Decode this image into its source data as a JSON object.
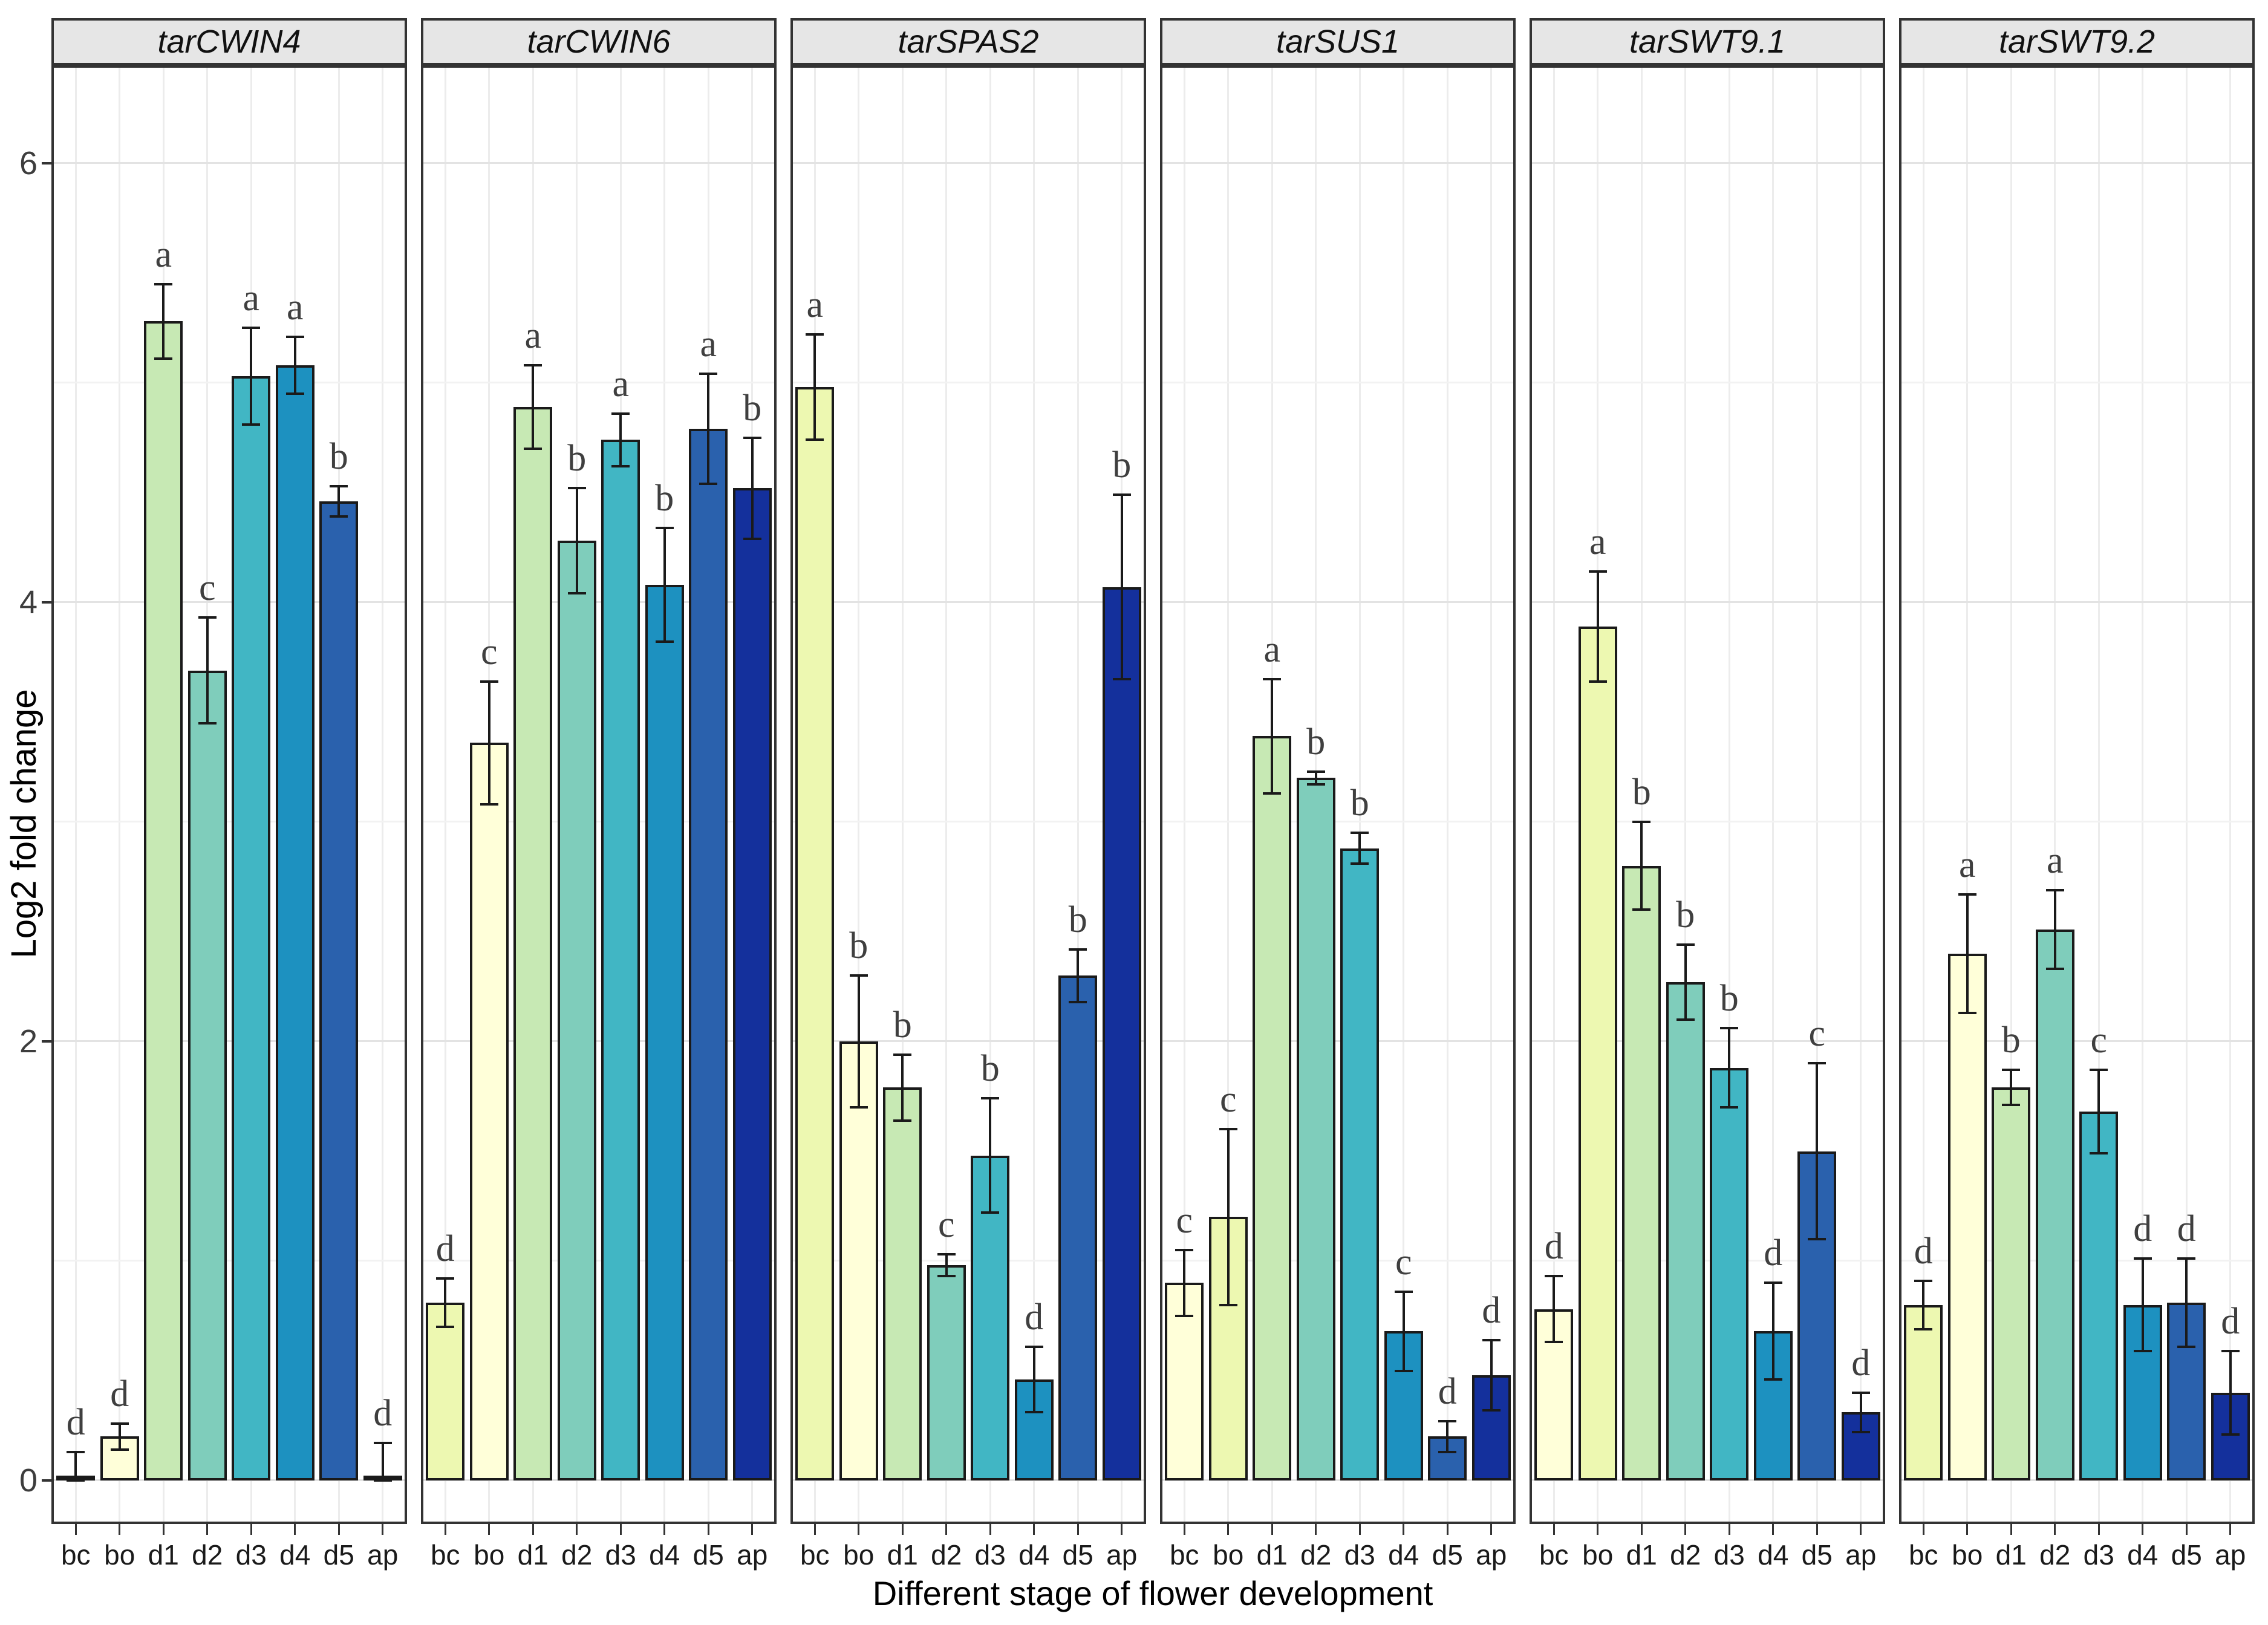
{
  "chart_data": {
    "type": "bar",
    "title": "",
    "xlabel": "Different stage of flower development",
    "ylabel": "Log2 fold change",
    "categories": [
      "bc",
      "bo",
      "d1",
      "d2",
      "d3",
      "d4",
      "d5",
      "ap"
    ],
    "yticks": [
      0,
      2,
      4,
      6
    ],
    "ylim": [
      0,
      6.45
    ],
    "grid": "major and minor horizontal, vertical at categories",
    "legend_position": "none",
    "error_bars": true,
    "significance_letters": true,
    "facets": [
      {
        "title": "tarCWIN4",
        "values": [
          0.02,
          0.2,
          5.28,
          3.69,
          5.03,
          5.08,
          4.46,
          0.02
        ],
        "errors": [
          0.11,
          0.06,
          0.17,
          0.24,
          0.22,
          0.13,
          0.07,
          0.15
        ],
        "letters": [
          "d",
          "d",
          "a",
          "c",
          "a",
          "a",
          "b",
          "d"
        ],
        "colors": [
          "#EDF8B1",
          "#FFFFD9",
          "#C7E9B4",
          "#7FCDBB",
          "#41B6C4",
          "#1D91C0",
          "#2A61AD",
          "#14309C"
        ]
      },
      {
        "title": "tarCWIN6",
        "values": [
          0.81,
          3.36,
          4.89,
          4.28,
          4.74,
          4.08,
          4.79,
          4.52
        ],
        "errors": [
          0.11,
          0.28,
          0.19,
          0.24,
          0.12,
          0.26,
          0.25,
          0.23
        ],
        "letters": [
          "d",
          "c",
          "a",
          "b",
          "a",
          "b",
          "a",
          "b"
        ],
        "colors": [
          "#EDF8B1",
          "#FFFFD9",
          "#C7E9B4",
          "#7FCDBB",
          "#41B6C4",
          "#1D91C0",
          "#2A61AD",
          "#14309C"
        ]
      },
      {
        "title": "tarSPAS2",
        "values": [
          4.98,
          2.0,
          1.79,
          0.98,
          1.48,
          0.46,
          2.3,
          4.07
        ],
        "errors": [
          0.24,
          0.3,
          0.15,
          0.05,
          0.26,
          0.15,
          0.12,
          0.42
        ],
        "letters": [
          "a",
          "b",
          "b",
          "c",
          "b",
          "d",
          "b",
          "b"
        ],
        "colors": [
          "#EDF8B1",
          "#FFFFD9",
          "#C7E9B4",
          "#7FCDBB",
          "#41B6C4",
          "#1D91C0",
          "#2A61AD",
          "#14309C"
        ]
      },
      {
        "title": "tarSUS1",
        "values": [
          0.9,
          1.2,
          3.39,
          3.2,
          2.88,
          0.68,
          0.2,
          0.48
        ],
        "errors": [
          0.15,
          0.4,
          0.26,
          0.03,
          0.07,
          0.18,
          0.07,
          0.16
        ],
        "letters": [
          "c",
          "c",
          "a",
          "b",
          "b",
          "c",
          "d",
          "d"
        ],
        "colors": [
          "#FFFFD9",
          "#EDF8B1",
          "#C7E9B4",
          "#7FCDBB",
          "#41B6C4",
          "#1D91C0",
          "#2A61AD",
          "#14309C"
        ]
      },
      {
        "title": "tarSWT9.1",
        "values": [
          0.78,
          3.89,
          2.8,
          2.27,
          1.88,
          0.68,
          1.5,
          0.31
        ],
        "errors": [
          0.15,
          0.25,
          0.2,
          0.17,
          0.18,
          0.22,
          0.4,
          0.09
        ],
        "letters": [
          "d",
          "a",
          "b",
          "b",
          "b",
          "d",
          "c",
          "d"
        ],
        "colors": [
          "#FFFFD9",
          "#EDF8B1",
          "#C7E9B4",
          "#7FCDBB",
          "#41B6C4",
          "#1D91C0",
          "#2A61AD",
          "#14309C"
        ]
      },
      {
        "title": "tarSWT9.2",
        "values": [
          0.8,
          2.4,
          1.79,
          2.51,
          1.68,
          0.8,
          0.81,
          0.4
        ],
        "errors": [
          0.11,
          0.27,
          0.08,
          0.18,
          0.19,
          0.21,
          0.2,
          0.19
        ],
        "letters": [
          "d",
          "a",
          "b",
          "a",
          "c",
          "d",
          "d",
          "d"
        ],
        "colors": [
          "#EDF8B1",
          "#FFFFD9",
          "#C7E9B4",
          "#7FCDBB",
          "#41B6C4",
          "#1D91C0",
          "#2A61AD",
          "#14309C"
        ]
      }
    ]
  },
  "y_axis": {
    "label": "Log2 fold change",
    "tick_labels": [
      "0",
      "2",
      "4",
      "6"
    ]
  },
  "x_axis": {
    "label": "Different stage of flower development",
    "stage_labels": [
      "bc",
      "bo",
      "d1",
      "d2",
      "d3",
      "d4",
      "d5",
      "ap"
    ]
  },
  "style": {
    "strip_background": "#E6E6E6",
    "panel_border": "#333333",
    "bar_outline": "#1a1a1a",
    "grid_major": "#E3E3E3",
    "grid_minor": "#F2F2F2",
    "letter_color": "#3f3f3f"
  }
}
